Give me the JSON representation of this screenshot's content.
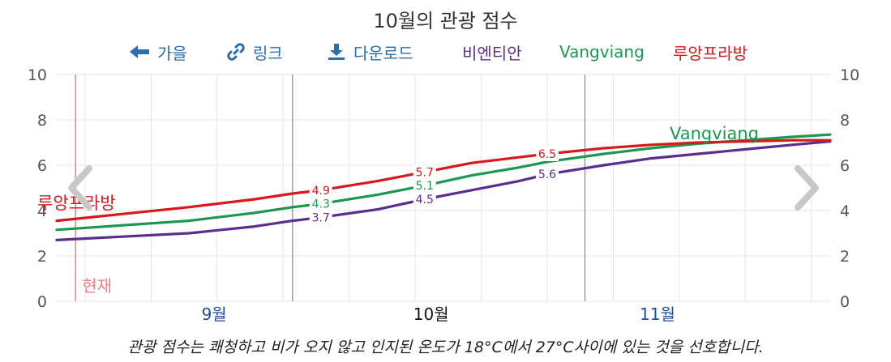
{
  "toolbar": {
    "back_label": "가을",
    "link_label": "링크",
    "download_label": "다운로드",
    "series_toggles": [
      "비엔티안",
      "Vangviang",
      "루앙프라방"
    ]
  },
  "colors": {
    "vientiane": "#5b2d90",
    "vangviang": "#1a9850",
    "luangprabang": "#d7191c",
    "accent": "#2a6db0",
    "now_line": "#f08080"
  },
  "nav": {
    "prev_icon": "chevron-left-icon",
    "next_icon": "chevron-right-icon"
  },
  "footnote": {
    "term": "관광 점수",
    "text": "는 쾌청하고 비가 오지 않고 인지된 온도가 18°C에서 27°C사이에 있는 것을 선호합니다."
  },
  "chart_data": {
    "type": "line",
    "title": "10월의 관광 점수",
    "x_axis_months": [
      "9월",
      "10월",
      "11월"
    ],
    "x_range_days": [
      "09-06",
      "11-27"
    ],
    "ylim": [
      0,
      10
    ],
    "yticks": [
      0,
      2,
      4,
      6,
      8,
      10
    ],
    "grid": true,
    "now_marker": {
      "date": "09-08",
      "label": "현재"
    },
    "month_boundaries": [
      "10-01",
      "11-01"
    ],
    "series": [
      {
        "name": "비엔티안",
        "color_key": "vientiane",
        "points": [
          [
            "09-06",
            2.7
          ],
          [
            "09-13",
            2.85
          ],
          [
            "09-20",
            3.0
          ],
          [
            "09-27",
            3.3
          ],
          [
            "10-01",
            3.55
          ],
          [
            "10-04",
            3.7
          ],
          [
            "10-10",
            4.05
          ],
          [
            "10-15",
            4.5
          ],
          [
            "10-20",
            4.9
          ],
          [
            "10-25",
            5.3
          ],
          [
            "10-28",
            5.6
          ],
          [
            "11-03",
            6.0
          ],
          [
            "11-08",
            6.3
          ],
          [
            "11-13",
            6.5
          ],
          [
            "11-18",
            6.7
          ],
          [
            "11-23",
            6.9
          ],
          [
            "11-27",
            7.05
          ]
        ],
        "labels": [
          [
            "10-04",
            3.7
          ],
          [
            "10-15",
            4.5
          ],
          [
            "10-28",
            5.6
          ]
        ]
      },
      {
        "name": "Vangviang",
        "color_key": "vangviang",
        "points": [
          [
            "09-06",
            3.15
          ],
          [
            "09-13",
            3.35
          ],
          [
            "09-20",
            3.55
          ],
          [
            "09-27",
            3.9
          ],
          [
            "10-01",
            4.15
          ],
          [
            "10-04",
            4.3
          ],
          [
            "10-10",
            4.7
          ],
          [
            "10-15",
            5.1
          ],
          [
            "10-20",
            5.55
          ],
          [
            "10-25",
            5.9
          ],
          [
            "10-28",
            6.15
          ],
          [
            "11-03",
            6.5
          ],
          [
            "11-08",
            6.75
          ],
          [
            "11-13",
            6.95
          ],
          [
            "11-18",
            7.1
          ],
          [
            "11-23",
            7.25
          ],
          [
            "11-27",
            7.35
          ]
        ],
        "labels": [
          [
            "10-04",
            4.3
          ],
          [
            "10-15",
            5.1
          ]
        ],
        "inline_label": {
          "text": "Vangviang",
          "date": "11-10",
          "value": 7.3
        }
      },
      {
        "name": "루앙프라방",
        "color_key": "luangprabang",
        "points": [
          [
            "09-06",
            3.55
          ],
          [
            "09-13",
            3.85
          ],
          [
            "09-20",
            4.15
          ],
          [
            "09-27",
            4.5
          ],
          [
            "10-01",
            4.75
          ],
          [
            "10-04",
            4.9
          ],
          [
            "10-10",
            5.3
          ],
          [
            "10-15",
            5.7
          ],
          [
            "10-20",
            6.1
          ],
          [
            "10-25",
            6.35
          ],
          [
            "10-28",
            6.5
          ],
          [
            "11-03",
            6.75
          ],
          [
            "11-08",
            6.9
          ],
          [
            "11-13",
            7.0
          ],
          [
            "11-18",
            7.05
          ],
          [
            "11-23",
            7.1
          ],
          [
            "11-27",
            7.1
          ]
        ],
        "labels": [
          [
            "10-04",
            4.9
          ],
          [
            "10-15",
            5.7
          ],
          [
            "10-28",
            6.5
          ]
        ],
        "inline_label": {
          "text": "루앙프라방",
          "date": "09-06",
          "value": 4.3
        }
      }
    ]
  }
}
